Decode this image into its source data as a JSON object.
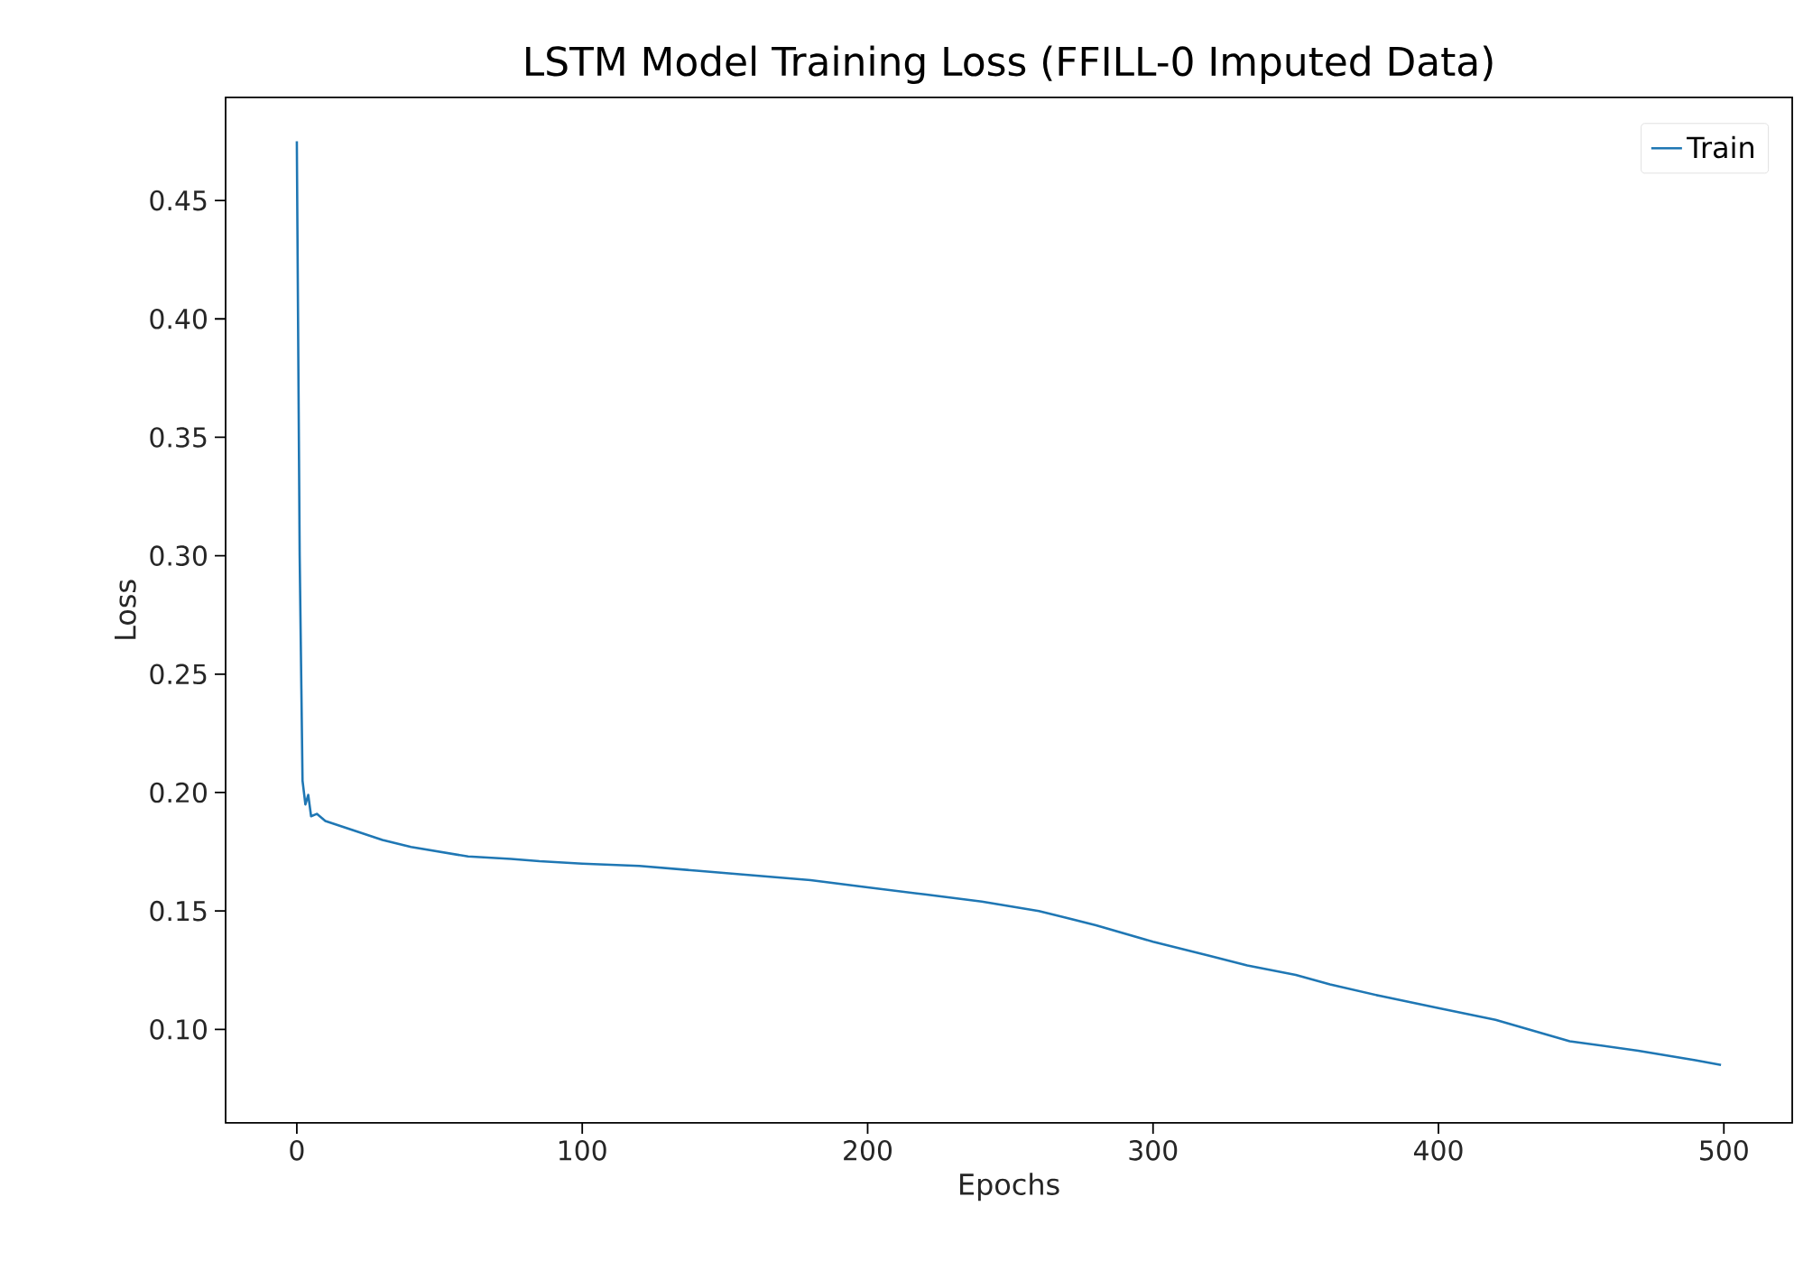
{
  "chart_data": {
    "type": "line",
    "title": "LSTM Model Training Loss (FFILL-0 Imputed Data)",
    "xlabel": "Epochs",
    "ylabel": "Loss",
    "x": [
      0,
      1,
      2,
      3,
      4,
      5,
      7,
      10,
      15,
      20,
      25,
      30,
      40,
      50,
      60,
      75,
      85,
      100,
      120,
      140,
      160,
      180,
      200,
      220,
      240,
      260,
      280,
      300,
      320,
      333,
      350,
      362,
      380,
      400,
      420,
      446,
      470,
      490,
      499
    ],
    "series": [
      {
        "name": "Train",
        "color": "#1f77b4",
        "values": [
          0.475,
          0.3,
          0.205,
          0.195,
          0.199,
          0.19,
          0.191,
          0.188,
          0.186,
          0.184,
          0.182,
          0.18,
          0.177,
          0.175,
          0.173,
          0.172,
          0.171,
          0.17,
          0.169,
          0.167,
          0.165,
          0.163,
          0.16,
          0.157,
          0.154,
          0.15,
          0.144,
          0.137,
          0.131,
          0.127,
          0.123,
          0.119,
          0.114,
          0.109,
          0.104,
          0.095,
          0.091,
          0.087,
          0.085
        ]
      }
    ],
    "xlim": [
      -24.95,
      523.95
    ],
    "ylim": [
      0.0605,
      0.4935
    ],
    "xticks": [
      0,
      100,
      200,
      300,
      400,
      500
    ],
    "yticks": [
      {
        "value": 0.1,
        "label": "0.10"
      },
      {
        "value": 0.15,
        "label": "0.15"
      },
      {
        "value": 0.2,
        "label": "0.20"
      },
      {
        "value": 0.25,
        "label": "0.25"
      },
      {
        "value": 0.3,
        "label": "0.30"
      },
      {
        "value": 0.35,
        "label": "0.35"
      },
      {
        "value": 0.4,
        "label": "0.40"
      },
      {
        "value": 0.45,
        "label": "0.45"
      }
    ],
    "legend": "top right",
    "grid": false
  }
}
